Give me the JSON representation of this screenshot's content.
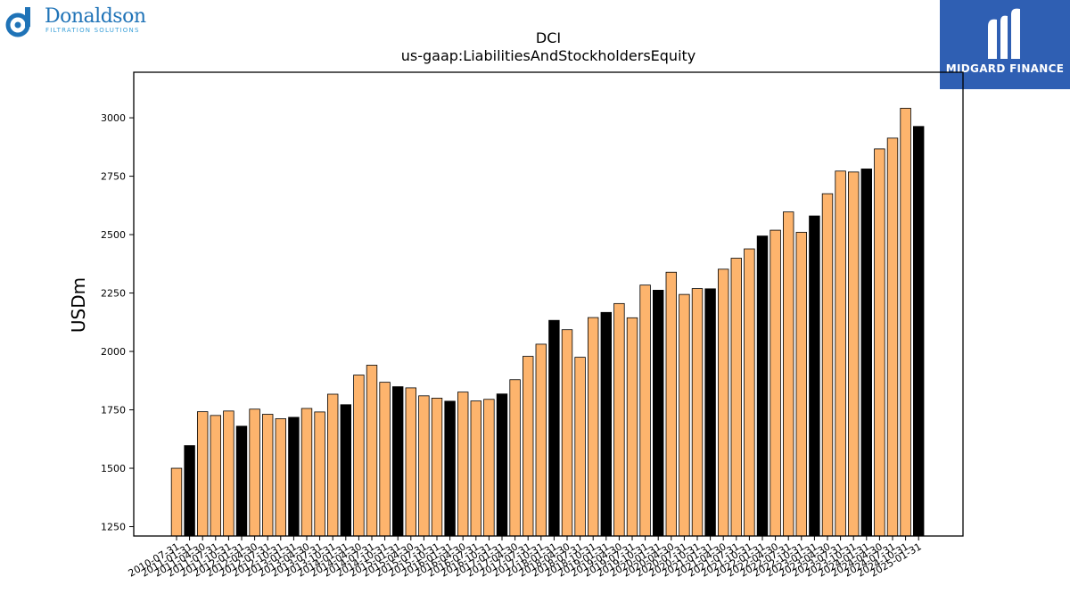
{
  "logo_left": {
    "name": "Donaldson",
    "tagline": "FILTRATION SOLUTIONS",
    "color": "#1f73b7"
  },
  "logo_right": {
    "name": "MIDGARD FINANCE",
    "bg": "#2f5fb3"
  },
  "chart_data": {
    "type": "bar",
    "title": "DCI",
    "subtitle": "us-gaap:LiabilitiesAndStockholdersEquity",
    "ylabel": "USDm",
    "xlabel": "",
    "ylim": [
      1210,
      3195
    ],
    "yticks": [
      1250,
      1500,
      1750,
      2000,
      2250,
      2500,
      2750,
      3000
    ],
    "grid": false,
    "colors": {
      "quarter": "#fdb46d",
      "fiscal_year_end": "#000000",
      "edge": "#000000"
    },
    "categories": [
      "2010-07-31",
      "2011-01-31",
      "2011-04-30",
      "2011-07-31",
      "2011-10-31",
      "2012-01-31",
      "2012-04-30",
      "2012-07-31",
      "2012-10-31",
      "2013-01-31",
      "2013-04-30",
      "2013-07-31",
      "2013-10-31",
      "2014-01-31",
      "2014-04-30",
      "2014-07-31",
      "2014-10-31",
      "2015-01-31",
      "2015-04-30",
      "2015-07-31",
      "2015-10-31",
      "2016-01-31",
      "2016-04-30",
      "2016-07-31",
      "2016-10-31",
      "2017-01-31",
      "2017-04-30",
      "2017-07-31",
      "2017-10-31",
      "2018-01-31",
      "2018-04-30",
      "2018-07-31",
      "2018-10-31",
      "2019-01-31",
      "2019-04-30",
      "2019-07-31",
      "2019-10-31",
      "2020-01-31",
      "2020-04-30",
      "2020-07-31",
      "2020-10-31",
      "2021-01-31",
      "2021-04-30",
      "2021-07-31",
      "2021-10-31",
      "2022-01-31",
      "2022-04-30",
      "2022-07-31",
      "2022-10-31",
      "2023-01-31",
      "2023-04-30",
      "2023-07-31",
      "2023-10-31",
      "2024-01-31",
      "2024-04-30",
      "2024-07-31",
      "2024-10-31",
      "2025-01-31"
    ],
    "values": [
      1500,
      1597,
      1742,
      1726,
      1745,
      1680,
      1753,
      1731,
      1712,
      1718,
      1756,
      1741,
      1817,
      1772,
      1899,
      1941,
      1868,
      1849,
      1844,
      1810,
      1800,
      1787,
      1826,
      1788,
      1795,
      1818,
      1879,
      1979,
      2031,
      2133,
      2093,
      1975,
      2145,
      2167,
      2205,
      2144,
      2284,
      2262,
      2339,
      2244,
      2269,
      2268,
      2352,
      2399,
      2439,
      2494,
      2519,
      2597,
      2510,
      2580,
      2675,
      2772,
      2768,
      2781,
      2867,
      2913,
      3041,
      2963
    ],
    "fiscal_year_end": [
      false,
      true,
      false,
      false,
      false,
      true,
      false,
      false,
      false,
      true,
      false,
      false,
      false,
      true,
      false,
      false,
      false,
      true,
      false,
      false,
      false,
      true,
      false,
      false,
      false,
      true,
      false,
      false,
      false,
      true,
      false,
      false,
      false,
      true,
      false,
      false,
      false,
      true,
      false,
      false,
      false,
      true,
      false,
      false,
      false,
      true,
      false,
      false,
      false,
      true,
      false,
      false,
      false,
      true,
      false,
      false,
      false,
      true
    ]
  }
}
